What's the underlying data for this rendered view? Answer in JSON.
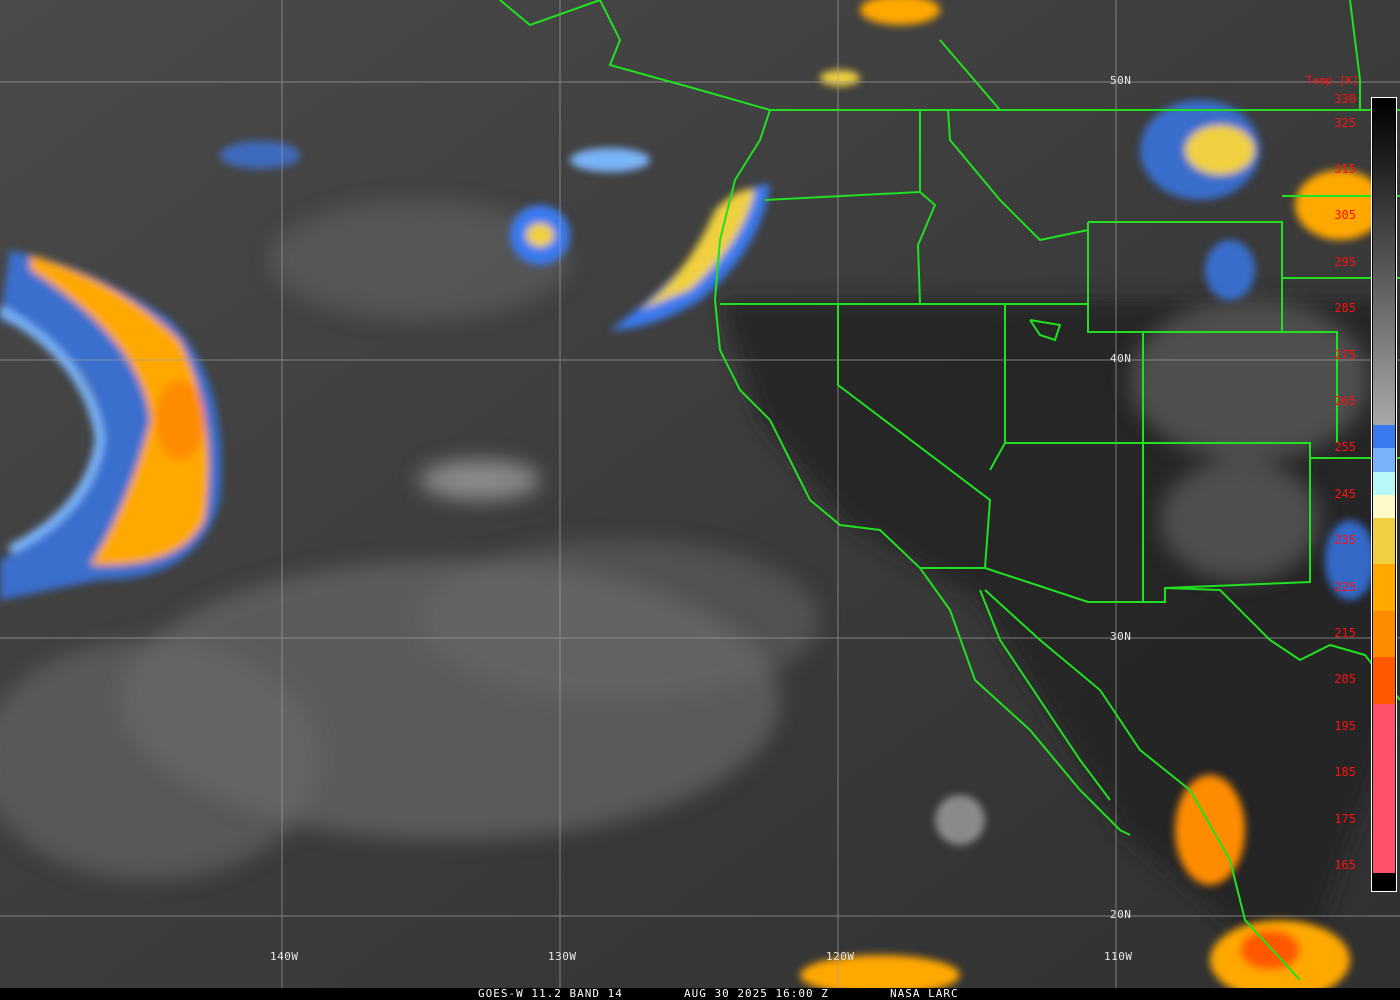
{
  "footer": {
    "satellite": "GOES-W 11.2 BAND 14",
    "datetime": "AUG 30 2025 16:00 Z",
    "source": "NASA LARC"
  },
  "grid": {
    "latitudes": [
      "50N",
      "40N",
      "30N",
      "20N"
    ],
    "longitudes": [
      "140W",
      "130W",
      "120W",
      "110W"
    ]
  },
  "colorbar": {
    "title": "Temp [K]",
    "labels": [
      "330",
      "325",
      "315",
      "305",
      "295",
      "285",
      "275",
      "265",
      "255",
      "245",
      "235",
      "225",
      "215",
      "205",
      "195",
      "185",
      "175",
      "165"
    ],
    "range_K": [
      163,
      330
    ],
    "segments": [
      {
        "from": 330,
        "to": 260,
        "color": "#000000",
        "to_color": "#a8a8a8"
      },
      {
        "from": 260,
        "to": 255,
        "color": "#3a7af0"
      },
      {
        "from": 255,
        "to": 250,
        "color": "#7ab4f8"
      },
      {
        "from": 250,
        "to": 245,
        "color": "#b8f8f8"
      },
      {
        "from": 245,
        "to": 240,
        "color": "#fff8c8"
      },
      {
        "from": 240,
        "to": 230,
        "color": "#f0d040"
      },
      {
        "from": 230,
        "to": 220,
        "color": "#ffa800"
      },
      {
        "from": 220,
        "to": 210,
        "color": "#ff8c00"
      },
      {
        "from": 210,
        "to": 200,
        "color": "#ff5800"
      },
      {
        "from": 200,
        "to": 163.5,
        "color": "#ff5068"
      }
    ]
  },
  "colors": {
    "borders": "#20e020",
    "grid": "#a0a0a0",
    "labels": "#ff1010"
  }
}
